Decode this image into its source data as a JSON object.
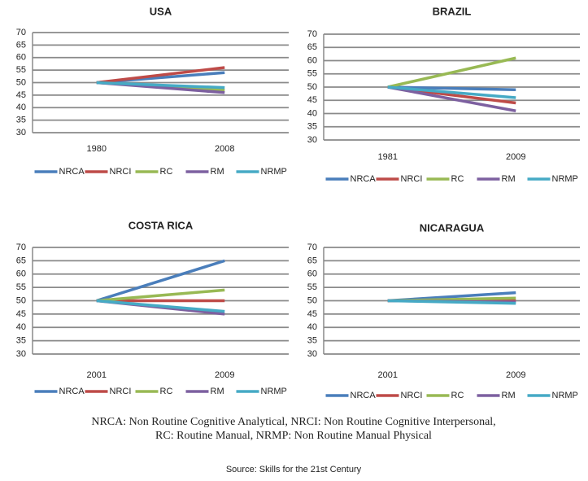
{
  "chart_data": [
    {
      "type": "line",
      "title": "USA",
      "categories": [
        "1980",
        "2008"
      ],
      "ylim": [
        30,
        70
      ],
      "yticks": [
        30,
        35,
        40,
        45,
        50,
        55,
        60,
        65,
        70
      ],
      "grid": true,
      "series": [
        {
          "name": "NRCA",
          "color": "#4a7ebb",
          "values": [
            50,
            54
          ]
        },
        {
          "name": "NRCI",
          "color": "#be4b48",
          "values": [
            50,
            56
          ]
        },
        {
          "name": "RC",
          "color": "#98b954",
          "values": [
            50,
            47
          ]
        },
        {
          "name": "RM",
          "color": "#7d60a0",
          "values": [
            50,
            46
          ]
        },
        {
          "name": "NRMP",
          "color": "#46aac5",
          "values": [
            50,
            48
          ]
        }
      ]
    },
    {
      "type": "line",
      "title": "BRAZIL",
      "categories": [
        "1981",
        "2009"
      ],
      "ylim": [
        30,
        70
      ],
      "yticks": [
        30,
        35,
        40,
        45,
        50,
        55,
        60,
        65,
        70
      ],
      "grid": true,
      "series": [
        {
          "name": "NRCA",
          "color": "#4a7ebb",
          "values": [
            50,
            49
          ]
        },
        {
          "name": "NRCI",
          "color": "#be4b48",
          "values": [
            50,
            44
          ]
        },
        {
          "name": "RC",
          "color": "#98b954",
          "values": [
            50,
            61
          ]
        },
        {
          "name": "RM",
          "color": "#7d60a0",
          "values": [
            50,
            41
          ]
        },
        {
          "name": "NRMP",
          "color": "#46aac5",
          "values": [
            50,
            46
          ]
        }
      ]
    },
    {
      "type": "line",
      "title": "COSTA RICA",
      "categories": [
        "2001",
        "2009"
      ],
      "ylim": [
        30,
        70
      ],
      "yticks": [
        30,
        35,
        40,
        45,
        50,
        55,
        60,
        65,
        70
      ],
      "grid": true,
      "series": [
        {
          "name": "NRCA",
          "color": "#4a7ebb",
          "values": [
            50,
            65
          ]
        },
        {
          "name": "NRCI",
          "color": "#be4b48",
          "values": [
            50,
            50
          ]
        },
        {
          "name": "RC",
          "color": "#98b954",
          "values": [
            50,
            54
          ]
        },
        {
          "name": "RM",
          "color": "#7d60a0",
          "values": [
            50,
            45
          ]
        },
        {
          "name": "NRMP",
          "color": "#46aac5",
          "values": [
            50,
            46
          ]
        }
      ]
    },
    {
      "type": "line",
      "title": "NICARAGUA",
      "categories": [
        "2001",
        "2009"
      ],
      "ylim": [
        30,
        70
      ],
      "yticks": [
        30,
        35,
        40,
        45,
        50,
        55,
        60,
        65,
        70
      ],
      "grid": true,
      "series": [
        {
          "name": "NRCA",
          "color": "#4a7ebb",
          "values": [
            50,
            53
          ]
        },
        {
          "name": "NRCI",
          "color": "#be4b48",
          "values": [
            50,
            50
          ]
        },
        {
          "name": "RC",
          "color": "#98b954",
          "values": [
            50,
            51
          ]
        },
        {
          "name": "RM",
          "color": "#7d60a0",
          "values": [
            50,
            49.5
          ]
        },
        {
          "name": "NRMP",
          "color": "#46aac5",
          "values": [
            50,
            49
          ]
        }
      ]
    }
  ],
  "footnote": [
    "NRCA: Non Routine Cognitive Analytical, NRCI: Non Routine Cognitive Interpersonal,",
    "RC: Routine Manual, NRMP: Non Routine Manual Physical"
  ],
  "source": "Source: Skills for the 21st Century"
}
